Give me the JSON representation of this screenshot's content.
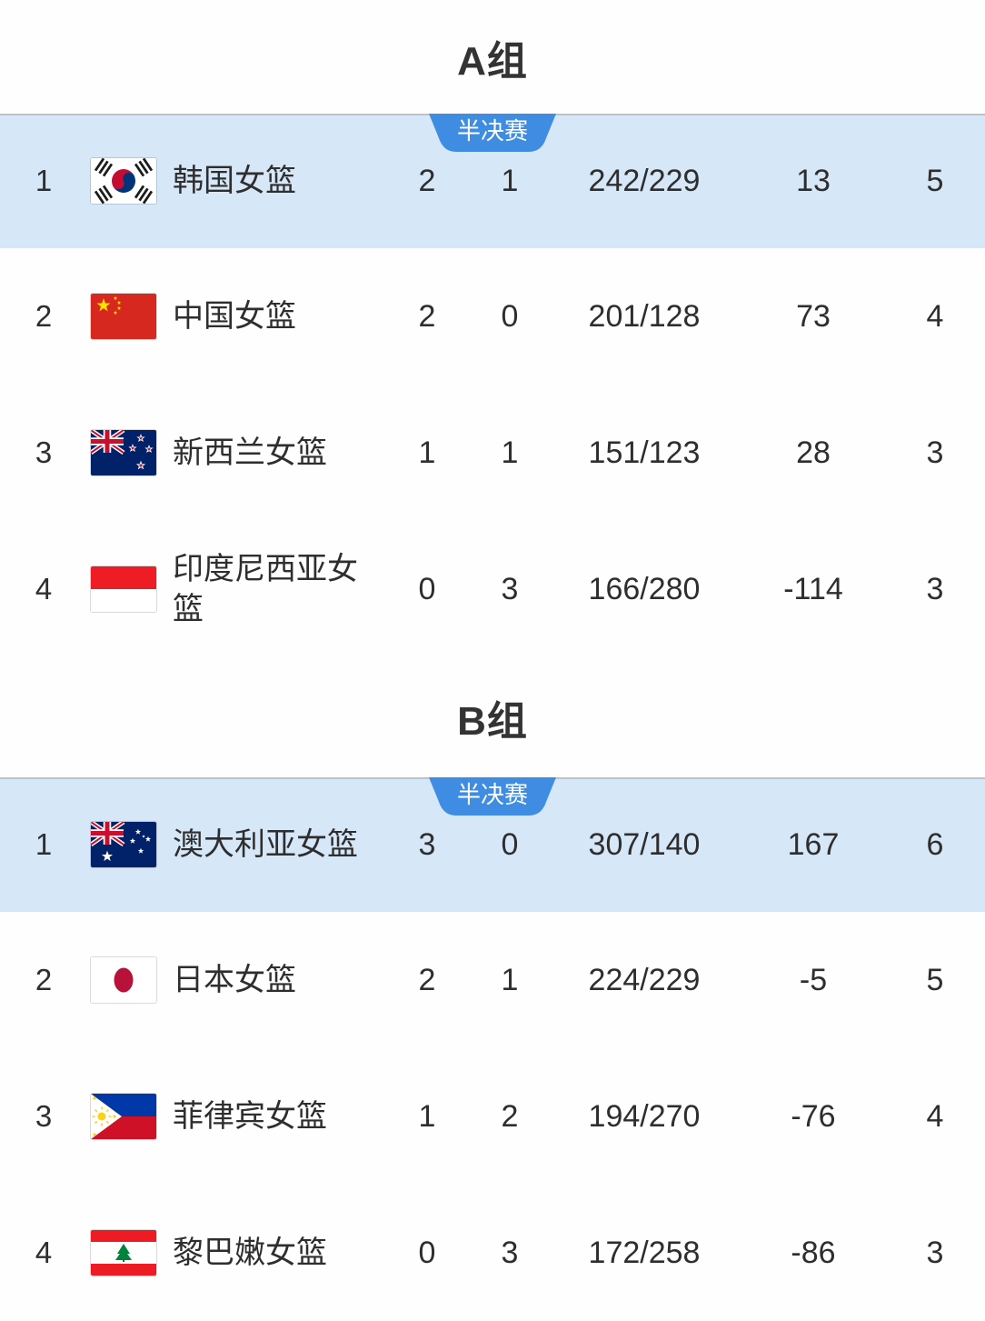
{
  "colors": {
    "page_bg": "#fefefe",
    "highlight_row_bg": "#d6e7f8",
    "badge_bg": "#3f8de2",
    "badge_text": "#ffffff",
    "text": "#2e2e2e",
    "title_text": "#333333",
    "separator": "#b2b9c3"
  },
  "groups": [
    {
      "title": "A组",
      "badge_label": "半决赛",
      "rows": [
        {
          "rank": "1",
          "flag_icon": "south-korea-flag-icon",
          "team": "韩国女篮",
          "wins": "2",
          "losses": "1",
          "score": "242/229",
          "diff": "13",
          "points": "5",
          "highlighted": true
        },
        {
          "rank": "2",
          "flag_icon": "china-flag-icon",
          "team": "中国女篮",
          "wins": "2",
          "losses": "0",
          "score": "201/128",
          "diff": "73",
          "points": "4",
          "highlighted": false
        },
        {
          "rank": "3",
          "flag_icon": "new-zealand-flag-icon",
          "team": "新西兰女篮",
          "wins": "1",
          "losses": "1",
          "score": "151/123",
          "diff": "28",
          "points": "3",
          "highlighted": false
        },
        {
          "rank": "4",
          "flag_icon": "indonesia-flag-icon",
          "team": "印度尼西亚女篮",
          "wins": "0",
          "losses": "3",
          "score": "166/280",
          "diff": "-114",
          "points": "3",
          "highlighted": false
        }
      ]
    },
    {
      "title": "B组",
      "badge_label": "半决赛",
      "rows": [
        {
          "rank": "1",
          "flag_icon": "australia-flag-icon",
          "team": "澳大利亚女篮",
          "wins": "3",
          "losses": "0",
          "score": "307/140",
          "diff": "167",
          "points": "6",
          "highlighted": true
        },
        {
          "rank": "2",
          "flag_icon": "japan-flag-icon",
          "team": "日本女篮",
          "wins": "2",
          "losses": "1",
          "score": "224/229",
          "diff": "-5",
          "points": "5",
          "highlighted": false
        },
        {
          "rank": "3",
          "flag_icon": "philippines-flag-icon",
          "team": "菲律宾女篮",
          "wins": "1",
          "losses": "2",
          "score": "194/270",
          "diff": "-76",
          "points": "4",
          "highlighted": false
        },
        {
          "rank": "4",
          "flag_icon": "lebanon-flag-icon",
          "team": "黎巴嫩女篮",
          "wins": "0",
          "losses": "3",
          "score": "172/258",
          "diff": "-86",
          "points": "3",
          "highlighted": false
        }
      ]
    }
  ]
}
